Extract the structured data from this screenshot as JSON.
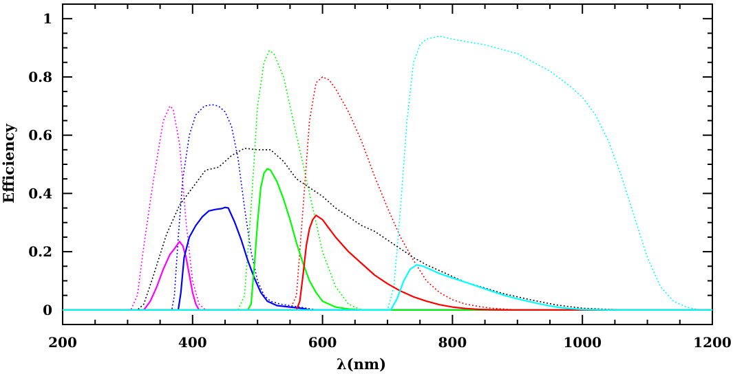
{
  "chart_data": {
    "type": "line",
    "title": "",
    "xlabel": "λ(nm)",
    "ylabel": "Efficiency",
    "xlim": [
      200,
      1200
    ],
    "ylim": [
      -0.05,
      1.05
    ],
    "xticks": [
      200,
      400,
      600,
      800,
      1000,
      1200
    ],
    "yticks": [
      0,
      0.2,
      0.4,
      0.6,
      0.8,
      1
    ],
    "xtick_labels": [
      "200",
      "400",
      "600",
      "800",
      "1000",
      "1200"
    ],
    "ytick_labels": [
      "0",
      "0.2",
      "0.4",
      "0.6",
      "0.8",
      "1"
    ],
    "grid": false,
    "series": [
      {
        "color": "#ff00ff",
        "style": "dotted",
        "x": [
          200,
          305,
          315,
          325,
          340,
          355,
          365,
          370,
          380,
          390,
          400,
          410,
          420,
          1200
        ],
        "y": [
          0,
          0,
          0.05,
          0.22,
          0.45,
          0.65,
          0.7,
          0.69,
          0.57,
          0.3,
          0.1,
          0.02,
          0,
          0
        ]
      },
      {
        "color": "#0000ff",
        "style": "dotted",
        "x": [
          200,
          368,
          372,
          378,
          385,
          395,
          405,
          418,
          430,
          440,
          450,
          460,
          470,
          480,
          490,
          500,
          510,
          520,
          535,
          550,
          570,
          590,
          1200
        ],
        "y": [
          0,
          0,
          0.05,
          0.25,
          0.45,
          0.6,
          0.67,
          0.7,
          0.705,
          0.7,
          0.68,
          0.63,
          0.52,
          0.35,
          0.2,
          0.1,
          0.05,
          0.03,
          0.02,
          0.015,
          0.008,
          0,
          0
        ]
      },
      {
        "color": "#00ff00",
        "style": "dotted",
        "x": [
          200,
          470,
          480,
          490,
          500,
          510,
          518,
          525,
          540,
          560,
          580,
          600,
          620,
          640,
          660,
          1200
        ],
        "y": [
          0,
          0,
          0.05,
          0.35,
          0.7,
          0.85,
          0.89,
          0.88,
          0.8,
          0.6,
          0.4,
          0.2,
          0.08,
          0.02,
          0,
          0
        ]
      },
      {
        "color": "#ff0000",
        "style": "dotted",
        "x": [
          200,
          550,
          560,
          570,
          580,
          590,
          600,
          610,
          620,
          640,
          660,
          680,
          700,
          720,
          740,
          760,
          780,
          800,
          820,
          840,
          860,
          880,
          900,
          1200
        ],
        "y": [
          0,
          0,
          0.05,
          0.35,
          0.65,
          0.78,
          0.8,
          0.79,
          0.76,
          0.68,
          0.58,
          0.46,
          0.35,
          0.25,
          0.17,
          0.1,
          0.06,
          0.035,
          0.02,
          0.012,
          0.006,
          0.003,
          0,
          0
        ]
      },
      {
        "color": "#00ffff",
        "style": "dotted",
        "x": [
          200,
          700,
          710,
          720,
          730,
          740,
          750,
          760,
          780,
          800,
          850,
          900,
          950,
          980,
          1000,
          1020,
          1040,
          1060,
          1080,
          1100,
          1120,
          1140,
          1160,
          1180,
          1200
        ],
        "y": [
          0,
          0,
          0.08,
          0.35,
          0.65,
          0.85,
          0.91,
          0.93,
          0.94,
          0.93,
          0.91,
          0.88,
          0.82,
          0.77,
          0.73,
          0.67,
          0.58,
          0.46,
          0.32,
          0.18,
          0.08,
          0.03,
          0.01,
          0,
          0
        ]
      },
      {
        "color": "#000000",
        "style": "dotted",
        "x": [
          200,
          315,
          325,
          340,
          360,
          380,
          400,
          420,
          440,
          460,
          480,
          500,
          520,
          540,
          560,
          580,
          600,
          620,
          640,
          660,
          680,
          700,
          720,
          740,
          760,
          780,
          800,
          820,
          850,
          880,
          920,
          960,
          1000,
          1040,
          1080,
          1200
        ],
        "y": [
          0,
          0,
          0.02,
          0.12,
          0.26,
          0.36,
          0.42,
          0.48,
          0.49,
          0.53,
          0.555,
          0.55,
          0.55,
          0.51,
          0.45,
          0.42,
          0.39,
          0.35,
          0.32,
          0.29,
          0.27,
          0.24,
          0.21,
          0.18,
          0.155,
          0.135,
          0.115,
          0.095,
          0.075,
          0.055,
          0.035,
          0.017,
          0.006,
          0.002,
          0,
          0
        ]
      },
      {
        "color": "#ff00ff",
        "style": "solid",
        "x": [
          200,
          325,
          335,
          345,
          355,
          365,
          372,
          380,
          385,
          390,
          395,
          400,
          405,
          410,
          1200
        ],
        "y": [
          0,
          0,
          0.03,
          0.08,
          0.14,
          0.19,
          0.21,
          0.235,
          0.22,
          0.18,
          0.12,
          0.06,
          0.02,
          0,
          0
        ]
      },
      {
        "color": "#0000ff",
        "style": "solid",
        "x": [
          200,
          378,
          382,
          387,
          395,
          405,
          415,
          425,
          435,
          445,
          450,
          455,
          465,
          475,
          485,
          495,
          505,
          515,
          530,
          550,
          570,
          580,
          1200
        ],
        "y": [
          0,
          0,
          0.06,
          0.18,
          0.25,
          0.29,
          0.32,
          0.34,
          0.345,
          0.348,
          0.352,
          0.35,
          0.3,
          0.24,
          0.17,
          0.11,
          0.06,
          0.03,
          0.015,
          0.01,
          0.005,
          0,
          0
        ]
      },
      {
        "color": "#00ff00",
        "style": "solid",
        "x": [
          200,
          485,
          490,
          495,
          500,
          505,
          510,
          515,
          520,
          530,
          540,
          550,
          560,
          570,
          580,
          590,
          600,
          620,
          640,
          660,
          1200
        ],
        "y": [
          0,
          0,
          0.02,
          0.15,
          0.3,
          0.42,
          0.47,
          0.485,
          0.48,
          0.44,
          0.38,
          0.31,
          0.23,
          0.16,
          0.1,
          0.06,
          0.03,
          0.01,
          0.003,
          0,
          0
        ]
      },
      {
        "color": "#ff0000",
        "style": "solid",
        "x": [
          200,
          560,
          565,
          570,
          575,
          580,
          585,
          590,
          600,
          610,
          620,
          640,
          660,
          680,
          700,
          720,
          740,
          760,
          780,
          800,
          820,
          840,
          880,
          1200
        ],
        "y": [
          0,
          0,
          0.03,
          0.12,
          0.22,
          0.28,
          0.31,
          0.325,
          0.31,
          0.28,
          0.25,
          0.2,
          0.16,
          0.12,
          0.09,
          0.065,
          0.045,
          0.03,
          0.018,
          0.01,
          0.005,
          0.002,
          0,
          0
        ]
      },
      {
        "color": "#00ffff",
        "style": "solid",
        "x": [
          200,
          705,
          715,
          725,
          735,
          745,
          755,
          765,
          780,
          800,
          820,
          840,
          860,
          880,
          900,
          920,
          940,
          960,
          980,
          1000,
          1020,
          1040,
          1200
        ],
        "y": [
          0,
          0,
          0.04,
          0.1,
          0.14,
          0.155,
          0.15,
          0.14,
          0.125,
          0.11,
          0.095,
          0.08,
          0.065,
          0.05,
          0.038,
          0.028,
          0.018,
          0.01,
          0.005,
          0.002,
          0.001,
          0,
          0
        ]
      }
    ]
  }
}
